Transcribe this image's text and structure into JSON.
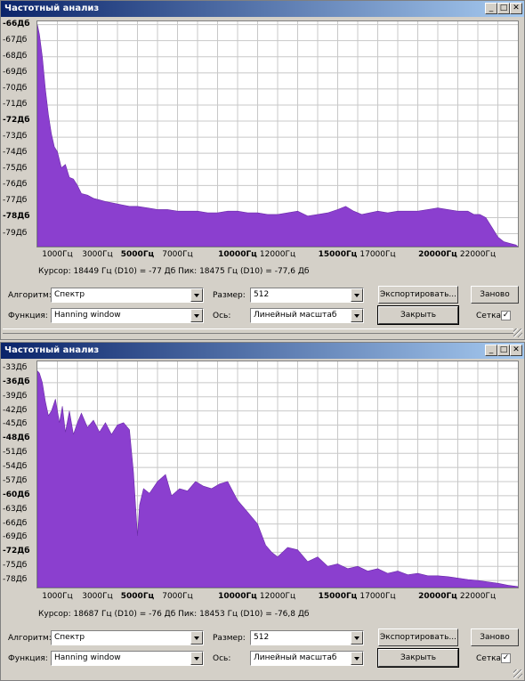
{
  "windows": [
    {
      "title": "Частотный анализ",
      "y_labels": [
        {
          "text": "-66Дб",
          "bold": true
        },
        {
          "text": "-67Дб",
          "bold": false
        },
        {
          "text": "-68Дб",
          "bold": false
        },
        {
          "text": "-69Дб",
          "bold": false
        },
        {
          "text": "-70Дб",
          "bold": false
        },
        {
          "text": "-71Дб",
          "bold": false
        },
        {
          "text": "-72Дб",
          "bold": true
        },
        {
          "text": "-73Дб",
          "bold": false
        },
        {
          "text": "-74Дб",
          "bold": false
        },
        {
          "text": "-75Дб",
          "bold": false
        },
        {
          "text": "-76Дб",
          "bold": false
        },
        {
          "text": "-77Дб",
          "bold": false
        },
        {
          "text": "-78Дб",
          "bold": true
        },
        {
          "text": "-79Дб",
          "bold": false
        }
      ],
      "x_labels": [
        {
          "text": "1000Гц",
          "bold": false
        },
        {
          "text": "3000Гц",
          "bold": false
        },
        {
          "text": "5000Гц",
          "bold": true
        },
        {
          "text": "7000Гц",
          "bold": false
        },
        {
          "text": "10000Гц",
          "bold": true
        },
        {
          "text": "12000Гц",
          "bold": false
        },
        {
          "text": "15000Гц",
          "bold": true
        },
        {
          "text": "17000Гц",
          "bold": false
        },
        {
          "text": "20000Гц",
          "bold": true
        },
        {
          "text": "22000Гц",
          "bold": false
        }
      ],
      "status": "Курсор: 18449 Гц (D10) = -77 Дб   Пик: 18475 Гц (D10) = -77,6 Дб",
      "controls": {
        "algorithm_label": "Алгоритм:",
        "algorithm_value": "Спектр",
        "function_label": "Функция:",
        "function_value": "Hanning window",
        "size_label": "Размер:",
        "size_value": "512",
        "axis_label": "Ось:",
        "axis_value": "Линейный масштаб",
        "export_label": "Экспортировать...",
        "redo_label": "Заново",
        "close_label": "Закрыть",
        "grid_label": "Сетка",
        "grid_checked": "✓"
      },
      "chart_data": {
        "type": "area",
        "color": "#8b3fcf",
        "x_unit": "Hz",
        "y_unit": "dB",
        "xlim": [
          0,
          24000
        ],
        "ylim": [
          -79.8,
          -65.8
        ],
        "x": [
          0,
          100,
          250,
          400,
          550,
          700,
          850,
          1000,
          1200,
          1400,
          1600,
          1800,
          2000,
          2200,
          2500,
          2800,
          3100,
          3400,
          3800,
          4200,
          4600,
          5000,
          5500,
          6000,
          6500,
          7000,
          7500,
          8000,
          8500,
          9000,
          9500,
          10000,
          10500,
          11000,
          11500,
          12000,
          12500,
          13000,
          13500,
          14000,
          14500,
          15000,
          15400,
          15800,
          16200,
          16600,
          17000,
          17500,
          18000,
          18500,
          19000,
          19500,
          20000,
          20500,
          21000,
          21500,
          21800,
          22100,
          22400,
          22700,
          23000,
          23300,
          23600,
          23900,
          24000
        ],
        "y": [
          -66.0,
          -66.6,
          -68.0,
          -70.0,
          -71.6,
          -72.8,
          -73.6,
          -73.9,
          -74.9,
          -74.7,
          -75.5,
          -75.6,
          -76.0,
          -76.5,
          -76.6,
          -76.8,
          -76.9,
          -77.0,
          -77.1,
          -77.2,
          -77.3,
          -77.3,
          -77.4,
          -77.5,
          -77.5,
          -77.6,
          -77.6,
          -77.6,
          -77.7,
          -77.7,
          -77.6,
          -77.6,
          -77.7,
          -77.7,
          -77.8,
          -77.8,
          -77.7,
          -77.6,
          -77.9,
          -77.8,
          -77.7,
          -77.5,
          -77.3,
          -77.6,
          -77.8,
          -77.7,
          -77.6,
          -77.7,
          -77.6,
          -77.6,
          -77.6,
          -77.5,
          -77.4,
          -77.5,
          -77.6,
          -77.6,
          -77.8,
          -77.8,
          -78.0,
          -78.6,
          -79.2,
          -79.5,
          -79.6,
          -79.7,
          -79.8
        ]
      }
    },
    {
      "title": "Частотный анализ",
      "y_labels": [
        {
          "text": "-33Дб",
          "bold": false
        },
        {
          "text": "-36Дб",
          "bold": true
        },
        {
          "text": "-39Дб",
          "bold": false
        },
        {
          "text": "-42Дб",
          "bold": false
        },
        {
          "text": "-45Дб",
          "bold": false
        },
        {
          "text": "-48Дб",
          "bold": true
        },
        {
          "text": "-51Дб",
          "bold": false
        },
        {
          "text": "-54Дб",
          "bold": false
        },
        {
          "text": "-57Дб",
          "bold": false
        },
        {
          "text": "-60Дб",
          "bold": true
        },
        {
          "text": "-63Дб",
          "bold": false
        },
        {
          "text": "-66Дб",
          "bold": false
        },
        {
          "text": "-69Дб",
          "bold": false
        },
        {
          "text": "-72Дб",
          "bold": true
        },
        {
          "text": "-75Дб",
          "bold": false
        },
        {
          "text": "-78Дб",
          "bold": false
        }
      ],
      "x_labels": [
        {
          "text": "1000Гц",
          "bold": false
        },
        {
          "text": "3000Гц",
          "bold": false
        },
        {
          "text": "5000Гц",
          "bold": true
        },
        {
          "text": "7000Гц",
          "bold": false
        },
        {
          "text": "10000Гц",
          "bold": true
        },
        {
          "text": "12000Гц",
          "bold": false
        },
        {
          "text": "15000Гц",
          "bold": true
        },
        {
          "text": "17000Гц",
          "bold": false
        },
        {
          "text": "20000Гц",
          "bold": true
        },
        {
          "text": "22000Гц",
          "bold": false
        }
      ],
      "status": "Курсор: 18687 Гц (D10) = -76 Дб   Пик: 18453 Гц (D10) = -76,8 Дб",
      "controls": {
        "algorithm_label": "Алгоритм:",
        "algorithm_value": "Спектр",
        "function_label": "Функция:",
        "function_value": "Hanning window",
        "size_label": "Размер:",
        "size_value": "512",
        "axis_label": "Ось:",
        "axis_value": "Линейный масштаб",
        "export_label": "Экспортировать...",
        "redo_label": "Заново",
        "close_label": "Закрыть",
        "grid_label": "Сетка",
        "grid_checked": "✓"
      },
      "chart_data": {
        "type": "area",
        "color": "#8b3fcf",
        "x_unit": "Hz",
        "y_unit": "dB",
        "xlim": [
          0,
          24000
        ],
        "ylim": [
          -79.5,
          -31.5
        ],
        "x": [
          0,
          100,
          250,
          400,
          550,
          700,
          900,
          1100,
          1250,
          1400,
          1600,
          1800,
          2000,
          2200,
          2500,
          2800,
          3100,
          3400,
          3700,
          4000,
          4300,
          4600,
          4800,
          5000,
          5100,
          5300,
          5600,
          6000,
          6400,
          6700,
          7100,
          7500,
          7900,
          8300,
          8700,
          9100,
          9500,
          10000,
          10500,
          11000,
          11400,
          11700,
          12000,
          12500,
          13000,
          13500,
          14000,
          14500,
          15000,
          15500,
          16000,
          16500,
          17000,
          17500,
          18000,
          18500,
          19000,
          19500,
          20000,
          20500,
          21000,
          21500,
          22000,
          22500,
          23000,
          23500,
          24000
        ],
        "y": [
          -33.5,
          -34.0,
          -36.0,
          -40.0,
          -43.0,
          -42.0,
          -39.5,
          -44.5,
          -41.0,
          -46.5,
          -42.0,
          -47.0,
          -44.5,
          -42.5,
          -45.5,
          -44.0,
          -46.5,
          -44.5,
          -47.0,
          -45.0,
          -44.5,
          -46.0,
          -55.0,
          -68.5,
          -62.0,
          -58.5,
          -59.5,
          -57.0,
          -55.5,
          -60.0,
          -58.5,
          -59.0,
          -57.0,
          -58.0,
          -58.5,
          -57.5,
          -57.0,
          -61.0,
          -63.5,
          -66.0,
          -70.5,
          -72.0,
          -73.0,
          -71.0,
          -71.5,
          -74.0,
          -73.0,
          -75.0,
          -74.5,
          -75.5,
          -75.0,
          -76.0,
          -75.5,
          -76.5,
          -76.0,
          -76.8,
          -76.5,
          -77.0,
          -77.0,
          -77.2,
          -77.5,
          -77.8,
          -78.0,
          -78.3,
          -78.6,
          -79.0,
          -79.3
        ]
      }
    }
  ]
}
